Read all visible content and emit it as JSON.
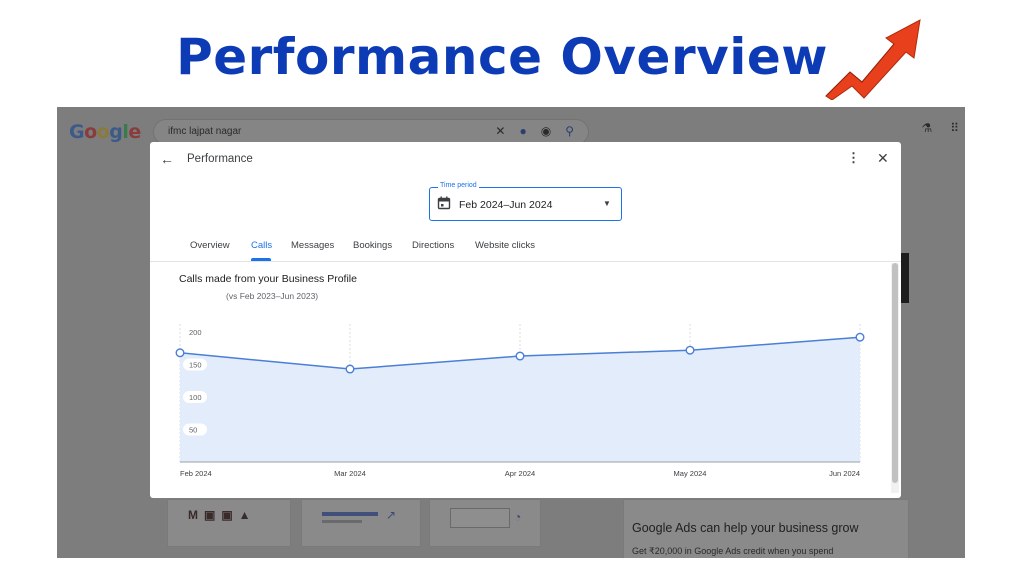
{
  "banner": {
    "title": "Performance Overview",
    "title_color": "#0c3bb5",
    "arrow_icon": "rising-arrow-icon",
    "arrow_color": "#e8401c"
  },
  "background": {
    "logo_letters": [
      "G",
      "o",
      "o",
      "g",
      "l",
      "e"
    ],
    "search_value": "ifmc lajpat nagar",
    "search_icons": [
      "close-icon",
      "mic-icon",
      "lens-icon",
      "search-icon"
    ],
    "right_icons": [
      "labs-flask-icon",
      "apps-grid-icon"
    ],
    "ad_title": "Google Ads can help your business grow",
    "ad_subtitle": "Get ₹20,000 in Google Ads credit when you spend"
  },
  "dialog": {
    "title": "Performance",
    "back_icon": "back-arrow-icon",
    "more_icon": "more-vert-icon",
    "close_icon": "close-icon",
    "time_period": {
      "label": "Time period",
      "value": "Feb 2024–Jun 2024",
      "icon": "calendar-icon"
    },
    "tabs": [
      {
        "label": "Overview",
        "active": false
      },
      {
        "label": "Calls",
        "active": true
      },
      {
        "label": "Messages",
        "active": false
      },
      {
        "label": "Bookings",
        "active": false
      },
      {
        "label": "Directions",
        "active": false
      },
      {
        "label": "Website clicks",
        "active": false
      }
    ],
    "accent_color": "#1a73e8"
  },
  "chart_data": {
    "type": "area",
    "title": "Calls made from your Business Profile",
    "subtitle": "(vs Feb 2023–Jun 2023)",
    "xlabel": "",
    "ylabel": "",
    "x": [
      "Feb 2024",
      "Mar 2024",
      "Apr 2024",
      "May 2024",
      "Jun 2024"
    ],
    "values": [
      168,
      143,
      163,
      172,
      192
    ],
    "yticks": [
      50,
      100,
      150,
      200
    ],
    "ylim": [
      0,
      200
    ],
    "line_color": "#4a7fd6",
    "fill_color": "#e3ecfb",
    "grid": "vertical-dashed"
  }
}
